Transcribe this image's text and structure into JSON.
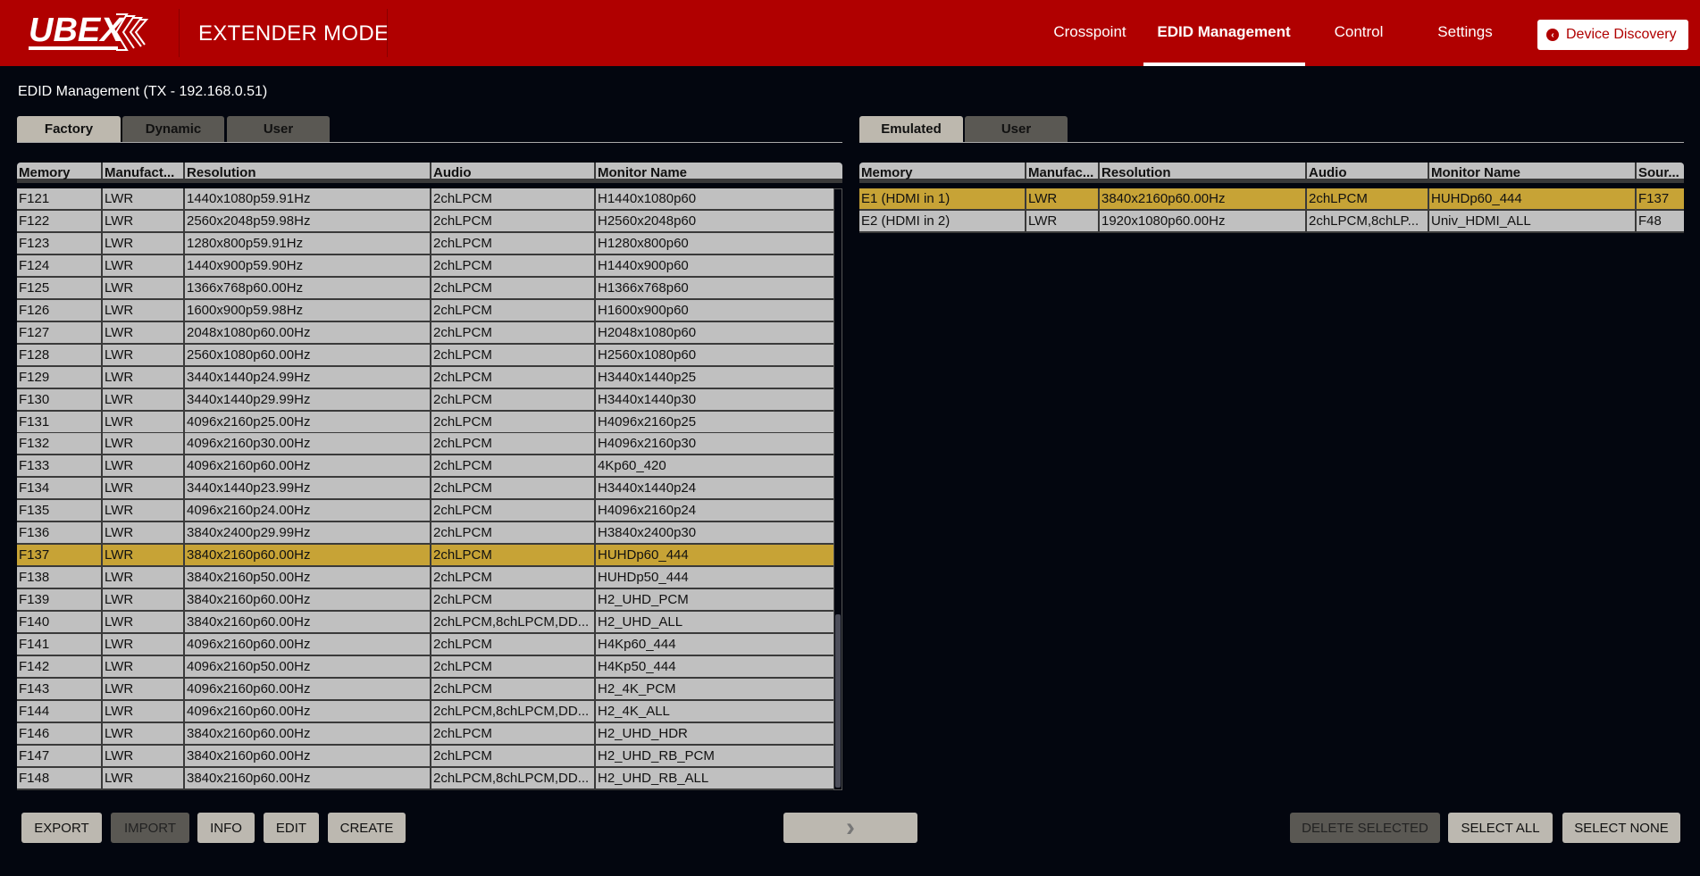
{
  "header": {
    "logo_text": "UBEX",
    "mode": "EXTENDER MODE",
    "nav": [
      {
        "label": "Crosspoint"
      },
      {
        "label": "EDID Management",
        "active": true
      },
      {
        "label": "Control"
      },
      {
        "label": "Settings"
      }
    ],
    "device_discovery": "Device Discovery",
    "brand_color": "#b00000"
  },
  "page_title": "EDID Management (TX - 192.168.0.51)",
  "left": {
    "tabs": [
      {
        "label": "Factory",
        "active": true
      },
      {
        "label": "Dynamic"
      },
      {
        "label": "User"
      }
    ],
    "columns": [
      "Memory",
      "Manufact...",
      "Resolution",
      "Audio",
      "Monitor Name"
    ],
    "rows": [
      [
        "F121",
        "LWR",
        "1440x1080p59.91Hz",
        "2chLPCM",
        "H1440x1080p60"
      ],
      [
        "F122",
        "LWR",
        "2560x2048p59.98Hz",
        "2chLPCM",
        "H2560x2048p60"
      ],
      [
        "F123",
        "LWR",
        "1280x800p59.91Hz",
        "2chLPCM",
        "H1280x800p60"
      ],
      [
        "F124",
        "LWR",
        "1440x900p59.90Hz",
        "2chLPCM",
        "H1440x900p60"
      ],
      [
        "F125",
        "LWR",
        "1366x768p60.00Hz",
        "2chLPCM",
        "H1366x768p60"
      ],
      [
        "F126",
        "LWR",
        "1600x900p59.98Hz",
        "2chLPCM",
        "H1600x900p60"
      ],
      [
        "F127",
        "LWR",
        "2048x1080p60.00Hz",
        "2chLPCM",
        "H2048x1080p60"
      ],
      [
        "F128",
        "LWR",
        "2560x1080p60.00Hz",
        "2chLPCM",
        "H2560x1080p60"
      ],
      [
        "F129",
        "LWR",
        "3440x1440p24.99Hz",
        "2chLPCM",
        "H3440x1440p25"
      ],
      [
        "F130",
        "LWR",
        "3440x1440p29.99Hz",
        "2chLPCM",
        "H3440x1440p30"
      ],
      [
        "F131",
        "LWR",
        "4096x2160p25.00Hz",
        "2chLPCM",
        "H4096x2160p25"
      ],
      [
        "F132",
        "LWR",
        "4096x2160p30.00Hz",
        "2chLPCM",
        "H4096x2160p30"
      ],
      [
        "F133",
        "LWR",
        "4096x2160p60.00Hz",
        "2chLPCM",
        "4Kp60_420"
      ],
      [
        "F134",
        "LWR",
        "3440x1440p23.99Hz",
        "2chLPCM",
        "H3440x1440p24"
      ],
      [
        "F135",
        "LWR",
        "4096x2160p24.00Hz",
        "2chLPCM",
        "H4096x2160p24"
      ],
      [
        "F136",
        "LWR",
        "3840x2400p29.99Hz",
        "2chLPCM",
        "H3840x2400p30"
      ],
      [
        "F137",
        "LWR",
        "3840x2160p60.00Hz",
        "2chLPCM",
        "HUHDp60_444"
      ],
      [
        "F138",
        "LWR",
        "3840x2160p50.00Hz",
        "2chLPCM",
        "HUHDp50_444"
      ],
      [
        "F139",
        "LWR",
        "3840x2160p60.00Hz",
        "2chLPCM",
        "H2_UHD_PCM"
      ],
      [
        "F140",
        "LWR",
        "3840x2160p60.00Hz",
        "2chLPCM,8chLPCM,DD...",
        "H2_UHD_ALL"
      ],
      [
        "F141",
        "LWR",
        "4096x2160p60.00Hz",
        "2chLPCM",
        "H4Kp60_444"
      ],
      [
        "F142",
        "LWR",
        "4096x2160p50.00Hz",
        "2chLPCM",
        "H4Kp50_444"
      ],
      [
        "F143",
        "LWR",
        "4096x2160p60.00Hz",
        "2chLPCM",
        "H2_4K_PCM"
      ],
      [
        "F144",
        "LWR",
        "4096x2160p60.00Hz",
        "2chLPCM,8chLPCM,DD...",
        "H2_4K_ALL"
      ],
      [
        "F146",
        "LWR",
        "3840x2160p60.00Hz",
        "2chLPCM",
        "H2_UHD_HDR"
      ],
      [
        "F147",
        "LWR",
        "3840x2160p60.00Hz",
        "2chLPCM",
        "H2_UHD_RB_PCM"
      ],
      [
        "F148",
        "LWR",
        "3840x2160p60.00Hz",
        "2chLPCM,8chLPCM,DD...",
        "H2_UHD_RB_ALL"
      ]
    ],
    "selected_row": "F137"
  },
  "right": {
    "tabs": [
      {
        "label": "Emulated",
        "active": true
      },
      {
        "label": "User"
      }
    ],
    "columns": [
      "Memory",
      "Manufac...",
      "Resolution",
      "Audio",
      "Monitor Name",
      "Sour..."
    ],
    "rows": [
      [
        "E1 (HDMI in 1)",
        "LWR",
        "3840x2160p60.00Hz",
        "2chLPCM",
        "HUHDp60_444",
        "F137"
      ],
      [
        "E2 (HDMI in 2)",
        "LWR",
        "1920x1080p60.00Hz",
        "2chLPCM,8chLP...",
        "Univ_HDMI_ALL",
        "F48"
      ]
    ],
    "selected_row": "E1 (HDMI in 1)"
  },
  "buttons": {
    "export": "EXPORT",
    "import": "IMPORT",
    "info": "INFO",
    "edit": "EDIT",
    "create": "CREATE",
    "transfer": "›",
    "delete_selected": "DELETE SELECTED",
    "select_all": "SELECT ALL",
    "select_none": "SELECT NONE"
  },
  "colors": {
    "selected_row": "#c7a336",
    "cell": "#c0c0c0",
    "background": "#03060f"
  }
}
